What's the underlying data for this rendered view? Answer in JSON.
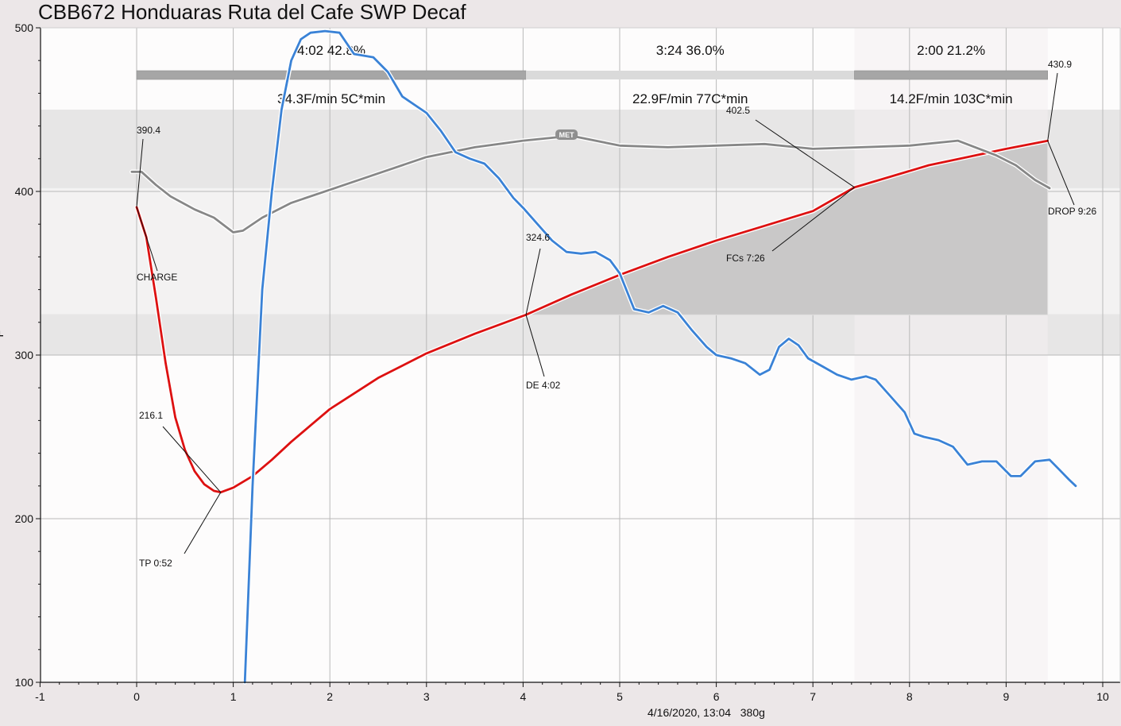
{
  "title": "CBB672 Honduaras Ruta del Cafe SWP Decaf",
  "footer": "4/16/2020, 13:04   380g",
  "colors": {
    "background": "#ece7e8",
    "plot": "#fdfcfc",
    "bean_temp": "#dd1111",
    "ror": "#3a82d6",
    "env_temp": "#878787",
    "phase_bar_dark": "#a6a6a6",
    "phase_bar_light": "#dadada",
    "dev_fill": "#c9c8c8",
    "band_outer": "#e7e6e6",
    "band_inner": "#f3f2f2"
  },
  "chart_data": {
    "type": "line",
    "xlim": [
      -1,
      10
    ],
    "ylim": [
      100,
      500
    ],
    "x_ticks": [
      "-1",
      "0",
      "1",
      "2",
      "3",
      "4",
      "5",
      "6",
      "7",
      "8",
      "9",
      "10"
    ],
    "y_ticks": [
      "100",
      "200",
      "300",
      "400",
      "500"
    ],
    "ylabel": "F",
    "series": [
      {
        "key": "bean_temp",
        "points": [
          [
            0,
            390.4
          ],
          [
            0.1,
            372
          ],
          [
            0.2,
            335
          ],
          [
            0.3,
            295
          ],
          [
            0.4,
            262
          ],
          [
            0.5,
            242
          ],
          [
            0.6,
            229
          ],
          [
            0.7,
            221
          ],
          [
            0.8,
            217
          ],
          [
            0.87,
            216.1
          ],
          [
            1.0,
            219
          ],
          [
            1.2,
            226
          ],
          [
            1.4,
            236
          ],
          [
            1.6,
            247
          ],
          [
            1.8,
            257
          ],
          [
            2.0,
            267
          ],
          [
            2.5,
            286
          ],
          [
            3.0,
            301
          ],
          [
            3.5,
            313
          ],
          [
            4.03,
            324.6
          ],
          [
            4.5,
            337
          ],
          [
            5.0,
            349
          ],
          [
            5.5,
            360
          ],
          [
            6.0,
            370
          ],
          [
            6.5,
            379
          ],
          [
            7.0,
            388
          ],
          [
            7.43,
            402.5
          ],
          [
            7.8,
            409
          ],
          [
            8.2,
            416
          ],
          [
            8.6,
            421
          ],
          [
            9.0,
            426
          ],
          [
            9.43,
            430.9
          ]
        ]
      },
      {
        "key": "env_temp",
        "points": [
          [
            -0.05,
            412
          ],
          [
            0.05,
            412
          ],
          [
            0.2,
            404
          ],
          [
            0.35,
            397
          ],
          [
            0.6,
            389
          ],
          [
            0.8,
            384
          ],
          [
            1.0,
            375
          ],
          [
            1.1,
            376
          ],
          [
            1.3,
            384
          ],
          [
            1.6,
            393
          ],
          [
            2.0,
            401
          ],
          [
            2.5,
            411
          ],
          [
            3.0,
            421
          ],
          [
            3.5,
            427
          ],
          [
            4.0,
            431
          ],
          [
            4.5,
            434
          ],
          [
            5.0,
            428
          ],
          [
            5.5,
            427
          ],
          [
            6.0,
            428
          ],
          [
            6.5,
            429
          ],
          [
            7.0,
            426
          ],
          [
            7.5,
            427
          ],
          [
            8.0,
            428
          ],
          [
            8.5,
            431
          ],
          [
            8.9,
            422
          ],
          [
            9.1,
            416
          ],
          [
            9.3,
            407
          ],
          [
            9.45,
            402
          ]
        ]
      },
      {
        "key": "ror",
        "points": [
          [
            1.12,
            100
          ],
          [
            1.2,
            220
          ],
          [
            1.3,
            340
          ],
          [
            1.4,
            400
          ],
          [
            1.5,
            450
          ],
          [
            1.6,
            480
          ],
          [
            1.7,
            493
          ],
          [
            1.8,
            497
          ],
          [
            1.95,
            498
          ],
          [
            2.1,
            497
          ],
          [
            2.25,
            484
          ],
          [
            2.45,
            482
          ],
          [
            2.6,
            473
          ],
          [
            2.75,
            458
          ],
          [
            2.9,
            452
          ],
          [
            3.0,
            448
          ],
          [
            3.15,
            437
          ],
          [
            3.3,
            424
          ],
          [
            3.45,
            420
          ],
          [
            3.6,
            417
          ],
          [
            3.75,
            408
          ],
          [
            3.9,
            396
          ],
          [
            4.0,
            390
          ],
          [
            4.15,
            380
          ],
          [
            4.3,
            370
          ],
          [
            4.45,
            363
          ],
          [
            4.6,
            362
          ],
          [
            4.75,
            363
          ],
          [
            4.9,
            358
          ],
          [
            5.0,
            350
          ],
          [
            5.15,
            328
          ],
          [
            5.3,
            326
          ],
          [
            5.45,
            330
          ],
          [
            5.6,
            326
          ],
          [
            5.75,
            315
          ],
          [
            5.9,
            305
          ],
          [
            6.0,
            300
          ],
          [
            6.15,
            298
          ],
          [
            6.3,
            295
          ],
          [
            6.45,
            288
          ],
          [
            6.55,
            291
          ],
          [
            6.65,
            305
          ],
          [
            6.75,
            310
          ],
          [
            6.85,
            306
          ],
          [
            6.95,
            298
          ],
          [
            7.1,
            293
          ],
          [
            7.25,
            288
          ],
          [
            7.4,
            285
          ],
          [
            7.55,
            287
          ],
          [
            7.65,
            285
          ],
          [
            7.8,
            275
          ],
          [
            7.95,
            265
          ],
          [
            8.05,
            252
          ],
          [
            8.15,
            250
          ],
          [
            8.3,
            248
          ],
          [
            8.45,
            244
          ],
          [
            8.6,
            233
          ],
          [
            8.75,
            235
          ],
          [
            8.9,
            235
          ],
          [
            9.05,
            226
          ],
          [
            9.15,
            226
          ],
          [
            9.3,
            235
          ],
          [
            9.45,
            236
          ],
          [
            9.55,
            230
          ],
          [
            9.65,
            224
          ],
          [
            9.72,
            220
          ]
        ]
      }
    ],
    "phases": [
      {
        "time": "4:02",
        "pct": "42.8%",
        "rate": "34.3F/min  5C*min",
        "start": 0,
        "end": 4.03
      },
      {
        "time": "3:24",
        "pct": "36.0%",
        "rate": "22.9F/min  77C*min",
        "start": 4.03,
        "end": 7.43
      },
      {
        "time": "2:00",
        "pct": "21.2%",
        "rate": "14.2F/min  103C*min",
        "start": 7.43,
        "end": 9.43
      }
    ],
    "annotations": [
      {
        "value": "390.4",
        "event": "CHARGE",
        "x": 0,
        "y": 390.4
      },
      {
        "value": "216.1",
        "event": "TP 0:52",
        "x": 0.87,
        "y": 216.1
      },
      {
        "value": "324.6",
        "event": "DE 4:02",
        "x": 4.03,
        "y": 324.6
      },
      {
        "value": "402.5",
        "event": "FCs 7:26",
        "x": 7.43,
        "y": 402.5
      },
      {
        "value": "430.9",
        "event": "DROP 9:26",
        "x": 9.43,
        "y": 430.9
      }
    ],
    "met_label": "MET",
    "met_point": [
      4.45,
      434
    ]
  }
}
